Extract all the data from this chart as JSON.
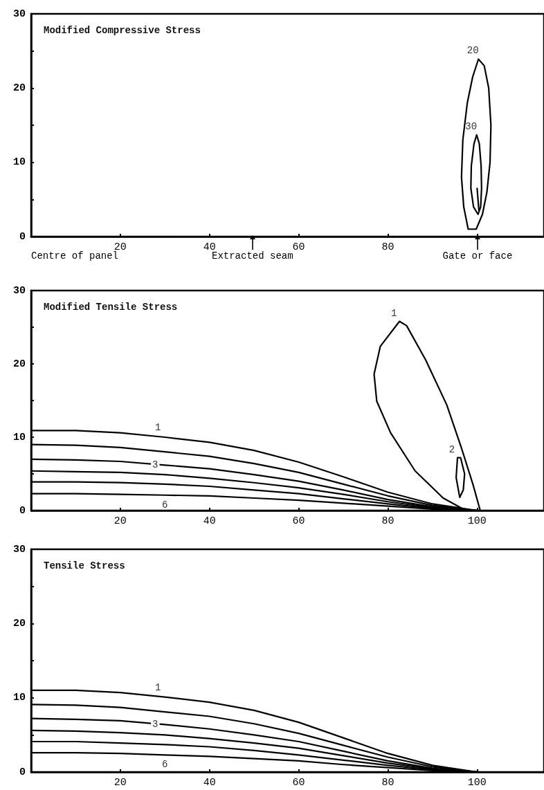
{
  "chart_data": [
    {
      "type": "line",
      "title": "Modified Compressive Stress",
      "xlim": [
        0,
        115
      ],
      "ylim": [
        0,
        30
      ],
      "xticks": [
        20,
        40,
        60,
        80,
        {
          "value": 100,
          "label": null
        }
      ],
      "yticks": [
        0,
        {
          "value": 5,
          "label": null
        },
        10,
        {
          "value": 15,
          "label": null
        },
        20,
        {
          "value": 25,
          "label": null
        },
        30
      ],
      "grid": false,
      "legend": false,
      "marker": "none",
      "line_style": "solid",
      "series": [
        {
          "name": "20",
          "color": "#000000",
          "x": [
            96.5,
            96.8,
            97.8,
            99,
            100.3,
            101.6,
            102.6,
            103.1,
            null,
            96.5,
            97,
            98,
            99.8,
            101.2,
            102.2,
            102.9,
            103.1
          ],
          "values": [
            8,
            13,
            18,
            21.5,
            23.9,
            23,
            20,
            15,
            null,
            8,
            4,
            1,
            1,
            3,
            6,
            10,
            15
          ]
        },
        {
          "name": "30",
          "color": "#000000",
          "x": [
            98.6,
            98.7,
            99.3,
            99.9,
            100.5,
            100.9,
            101,
            null,
            98.6,
            99.2,
            100.2,
            100.8,
            101,
            null,
            100,
            100.4
          ],
          "values": [
            6.5,
            9.5,
            12.5,
            13.7,
            12.5,
            9.5,
            6.5,
            null,
            6.5,
            4,
            3,
            4,
            6.5,
            null,
            6.5,
            3.5
          ]
        }
      ],
      "annotations": [
        "Centre of panel",
        "Extracted seam",
        "Gate or face"
      ]
    },
    {
      "type": "line",
      "title": "Modified Tensile Stress",
      "xlim": [
        0,
        115
      ],
      "ylim": [
        0,
        30
      ],
      "xticks": [
        20,
        40,
        60,
        80,
        100
      ],
      "yticks": [
        0,
        {
          "value": 5,
          "label": null
        },
        10,
        {
          "value": 15,
          "label": null
        },
        20,
        {
          "value": 25,
          "label": null
        },
        30
      ],
      "grid": false,
      "legend": false,
      "marker": "none",
      "line_style": "solid",
      "series": [
        {
          "name": "1",
          "color": "#000000",
          "x": [
            0,
            10,
            20,
            30,
            40,
            50,
            60,
            70,
            80,
            90,
            100
          ],
          "values": [
            10.9,
            10.9,
            10.6,
            10,
            9.3,
            8.2,
            6.6,
            4.6,
            2.5,
            0.9,
            0
          ]
        },
        {
          "color": "#000000",
          "x": [
            0,
            10,
            20,
            30,
            40,
            50,
            60,
            70,
            80,
            90,
            100
          ],
          "values": [
            9,
            8.9,
            8.6,
            8,
            7.4,
            6.4,
            5.2,
            3.6,
            2,
            0.7,
            0
          ]
        },
        {
          "name": "3",
          "color": "#000000",
          "x": [
            0,
            10,
            20,
            30,
            40,
            50,
            60,
            70,
            80,
            90,
            100
          ],
          "values": [
            7,
            6.9,
            6.7,
            6.2,
            5.7,
            4.9,
            4,
            2.8,
            1.5,
            0.5,
            0
          ]
        },
        {
          "color": "#000000",
          "x": [
            0,
            10,
            20,
            30,
            40,
            50,
            60,
            70,
            80,
            90,
            100
          ],
          "values": [
            5.4,
            5.3,
            5.2,
            4.9,
            4.4,
            3.8,
            3.1,
            2.2,
            1.2,
            0.4,
            0
          ]
        },
        {
          "color": "#000000",
          "x": [
            0,
            10,
            20,
            30,
            40,
            50,
            60,
            70,
            80,
            90,
            100
          ],
          "values": [
            3.9,
            3.9,
            3.8,
            3.6,
            3.3,
            2.8,
            2.3,
            1.6,
            0.9,
            0.3,
            0
          ]
        },
        {
          "name": "6",
          "color": "#000000",
          "x": [
            0,
            10,
            20,
            30,
            40,
            50,
            60,
            70,
            80,
            90,
            100
          ],
          "values": [
            2.3,
            2.3,
            2.2,
            2.1,
            2,
            1.7,
            1.4,
            1,
            0.6,
            0.2,
            0
          ]
        },
        {
          "name": "1",
          "color": "#000000",
          "x": [
            76.9,
            78.3,
            82.6,
            84.2,
            88.5,
            93.2,
            96.4,
            99.1,
            100.7,
            null,
            76.9,
            77.5,
            80.6,
            86.1,
            92.4,
            97.2,
            100.7
          ],
          "values": [
            18.6,
            22.4,
            25.8,
            25.2,
            20.5,
            14.4,
            8.7,
            3.5,
            0,
            null,
            18.6,
            14.9,
            10.6,
            5.4,
            1.7,
            0.1,
            0
          ]
        },
        {
          "name": "2",
          "color": "#000000",
          "x": [
            95.3,
            95.6,
            96.3,
            97.2,
            null,
            95.3,
            96.1,
            96.9,
            97.2
          ],
          "values": [
            4.5,
            7.2,
            7.2,
            5,
            null,
            4.5,
            1.8,
            2.8,
            5
          ]
        }
      ]
    },
    {
      "type": "line",
      "title": "Tensile Stress",
      "xlim": [
        0,
        115
      ],
      "ylim": [
        0,
        30
      ],
      "xticks": [
        20,
        40,
        60,
        80,
        100
      ],
      "yticks": [
        0,
        {
          "value": 5,
          "label": null
        },
        10,
        {
          "value": 15,
          "label": null
        },
        20,
        {
          "value": 25,
          "label": null
        },
        30
      ],
      "grid": false,
      "legend": false,
      "marker": "none",
      "line_style": "solid",
      "series": [
        {
          "name": "1",
          "color": "#000000",
          "x": [
            0,
            10,
            20,
            30,
            40,
            50,
            60,
            70,
            80,
            90,
            100
          ],
          "values": [
            11,
            11,
            10.7,
            10.1,
            9.4,
            8.3,
            6.7,
            4.6,
            2.5,
            0.9,
            0
          ]
        },
        {
          "color": "#000000",
          "x": [
            0,
            10,
            20,
            30,
            40,
            50,
            60,
            70,
            80,
            90,
            100
          ],
          "values": [
            9.1,
            9,
            8.7,
            8.1,
            7.5,
            6.5,
            5.2,
            3.6,
            2,
            0.7,
            0
          ]
        },
        {
          "name": "3",
          "color": "#000000",
          "x": [
            0,
            10,
            20,
            30,
            40,
            50,
            60,
            70,
            80,
            90,
            100
          ],
          "values": [
            7.2,
            7.1,
            6.9,
            6.4,
            5.8,
            5,
            4.1,
            2.8,
            1.5,
            0.5,
            0
          ]
        },
        {
          "color": "#000000",
          "x": [
            0,
            10,
            20,
            30,
            40,
            50,
            60,
            70,
            80,
            90,
            100
          ],
          "values": [
            5.6,
            5.5,
            5.3,
            5,
            4.5,
            3.9,
            3.2,
            2.2,
            1.2,
            0.4,
            0
          ]
        },
        {
          "color": "#000000",
          "x": [
            0,
            10,
            20,
            30,
            40,
            50,
            60,
            70,
            80,
            90,
            100
          ],
          "values": [
            4.1,
            4.1,
            3.9,
            3.7,
            3.4,
            2.9,
            2.3,
            1.6,
            0.9,
            0.3,
            0
          ]
        },
        {
          "name": "6",
          "color": "#000000",
          "x": [
            0,
            10,
            20,
            30,
            40,
            50,
            60,
            70,
            80,
            90,
            100
          ],
          "values": [
            2.6,
            2.6,
            2.5,
            2.3,
            2.1,
            1.8,
            1.5,
            1,
            0.6,
            0.2,
            0
          ]
        }
      ]
    }
  ]
}
